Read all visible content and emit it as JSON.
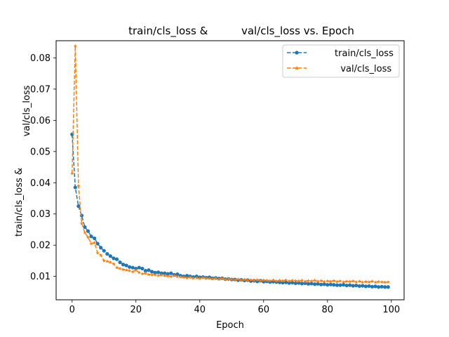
{
  "chart_data": {
    "type": "line",
    "title": "train/cls_loss &          val/cls_loss vs. Epoch",
    "xlabel": "Epoch",
    "ylabel_lines": [
      "val/cls_loss",
      "train/cls_loss &"
    ],
    "xlim": [
      -5,
      104
    ],
    "ylim": [
      0.0025,
      0.0855
    ],
    "xticks": [
      0,
      20,
      40,
      60,
      80,
      100
    ],
    "yticks": [
      0.01,
      0.02,
      0.03,
      0.04,
      0.05,
      0.06,
      0.07,
      0.08
    ],
    "ytick_labels": [
      "0.01",
      "0.02",
      "0.03",
      "0.04",
      "0.05",
      "0.06",
      "0.07",
      "0.08"
    ],
    "grid": false,
    "legend": "top-right",
    "series": [
      {
        "name": "        train/cls_loss",
        "color": "#1f77b4",
        "marker": "circle",
        "x": [
          0,
          1,
          2,
          3,
          4,
          5,
          6,
          7,
          8,
          9,
          10,
          11,
          12,
          13,
          14,
          15,
          16,
          17,
          18,
          19,
          20,
          21,
          22,
          23,
          24,
          25,
          26,
          27,
          28,
          29,
          30,
          31,
          32,
          33,
          34,
          35,
          36,
          37,
          38,
          39,
          40,
          41,
          42,
          43,
          44,
          45,
          46,
          47,
          48,
          49,
          50,
          51,
          52,
          53,
          54,
          55,
          56,
          57,
          58,
          59,
          60,
          61,
          62,
          63,
          64,
          65,
          66,
          67,
          68,
          69,
          70,
          71,
          72,
          73,
          74,
          75,
          76,
          77,
          78,
          79,
          80,
          81,
          82,
          83,
          84,
          85,
          86,
          87,
          88,
          89,
          90,
          91,
          92,
          93,
          94,
          95,
          96,
          97,
          98,
          99
        ],
        "y": [
          0.0555,
          0.0385,
          0.0325,
          0.0295,
          0.0258,
          0.0245,
          0.0228,
          0.0222,
          0.0205,
          0.0192,
          0.0182,
          0.0172,
          0.0165,
          0.0158,
          0.0155,
          0.0145,
          0.0138,
          0.0135,
          0.013,
          0.0128,
          0.0125,
          0.0128,
          0.0125,
          0.0118,
          0.012,
          0.0115,
          0.0112,
          0.0113,
          0.011,
          0.011,
          0.0108,
          0.011,
          0.0105,
          0.0107,
          0.0102,
          0.01,
          0.0102,
          0.01,
          0.0098,
          0.01,
          0.0097,
          0.0098,
          0.0096,
          0.0097,
          0.0094,
          0.0095,
          0.0093,
          0.0094,
          0.0091,
          0.0092,
          0.009,
          0.009,
          0.0088,
          0.0089,
          0.0087,
          0.0088,
          0.0085,
          0.0086,
          0.0084,
          0.0086,
          0.0083,
          0.0084,
          0.0082,
          0.0083,
          0.0082,
          0.0081,
          0.008,
          0.0081,
          0.0079,
          0.008,
          0.0078,
          0.0079,
          0.0077,
          0.0078,
          0.0076,
          0.0077,
          0.0075,
          0.0076,
          0.0074,
          0.0075,
          0.0073,
          0.0074,
          0.0073,
          0.0072,
          0.0072,
          0.0073,
          0.0071,
          0.0072,
          0.007,
          0.0071,
          0.0069,
          0.007,
          0.0068,
          0.0069,
          0.0067,
          0.0068,
          0.0066,
          0.0067,
          0.0066,
          0.0066
        ]
      },
      {
        "name": "          val/cls_loss",
        "color": "#ff7f0e",
        "marker": "star",
        "x": [
          0,
          1,
          2,
          3,
          4,
          5,
          6,
          7,
          8,
          9,
          10,
          11,
          12,
          13,
          14,
          15,
          16,
          17,
          18,
          19,
          20,
          21,
          22,
          23,
          24,
          25,
          26,
          27,
          28,
          29,
          30,
          31,
          32,
          33,
          34,
          35,
          36,
          37,
          38,
          39,
          40,
          41,
          42,
          43,
          44,
          45,
          46,
          47,
          48,
          49,
          50,
          51,
          52,
          53,
          54,
          55,
          56,
          57,
          58,
          59,
          60,
          61,
          62,
          63,
          64,
          65,
          66,
          67,
          68,
          69,
          70,
          71,
          72,
          73,
          74,
          75,
          76,
          77,
          78,
          79,
          80,
          81,
          82,
          83,
          84,
          85,
          86,
          87,
          88,
          89,
          90,
          91,
          92,
          93,
          94,
          95,
          96,
          97,
          98,
          99
        ],
        "y": [
          0.043,
          0.0838,
          0.039,
          0.027,
          0.024,
          0.0225,
          0.0205,
          0.0208,
          0.0175,
          0.0168,
          0.015,
          0.0148,
          0.0145,
          0.014,
          0.0128,
          0.0125,
          0.0122,
          0.012,
          0.0118,
          0.0115,
          0.012,
          0.0112,
          0.0108,
          0.011,
          0.0106,
          0.0105,
          0.0105,
          0.0103,
          0.0104,
          0.0102,
          0.0101,
          0.01,
          0.0102,
          0.0099,
          0.0098,
          0.0097,
          0.0095,
          0.0097,
          0.0094,
          0.0095,
          0.0093,
          0.0096,
          0.0094,
          0.0093,
          0.0092,
          0.0094,
          0.0091,
          0.0093,
          0.009,
          0.0092,
          0.009,
          0.0089,
          0.0091,
          0.0088,
          0.009,
          0.0088,
          0.0089,
          0.0087,
          0.0089,
          0.0086,
          0.0088,
          0.0087,
          0.0086,
          0.0088,
          0.0085,
          0.0087,
          0.0086,
          0.0088,
          0.0085,
          0.0087,
          0.0086,
          0.0085,
          0.0087,
          0.0084,
          0.0086,
          0.0085,
          0.0087,
          0.0084,
          0.0086,
          0.0083,
          0.0085,
          0.0084,
          0.0086,
          0.0083,
          0.0085,
          0.0082,
          0.0084,
          0.0083,
          0.0085,
          0.0082,
          0.0084,
          0.0081,
          0.0083,
          0.0082,
          0.0084,
          0.0081,
          0.0083,
          0.0082,
          0.0081,
          0.0082
        ]
      }
    ]
  }
}
